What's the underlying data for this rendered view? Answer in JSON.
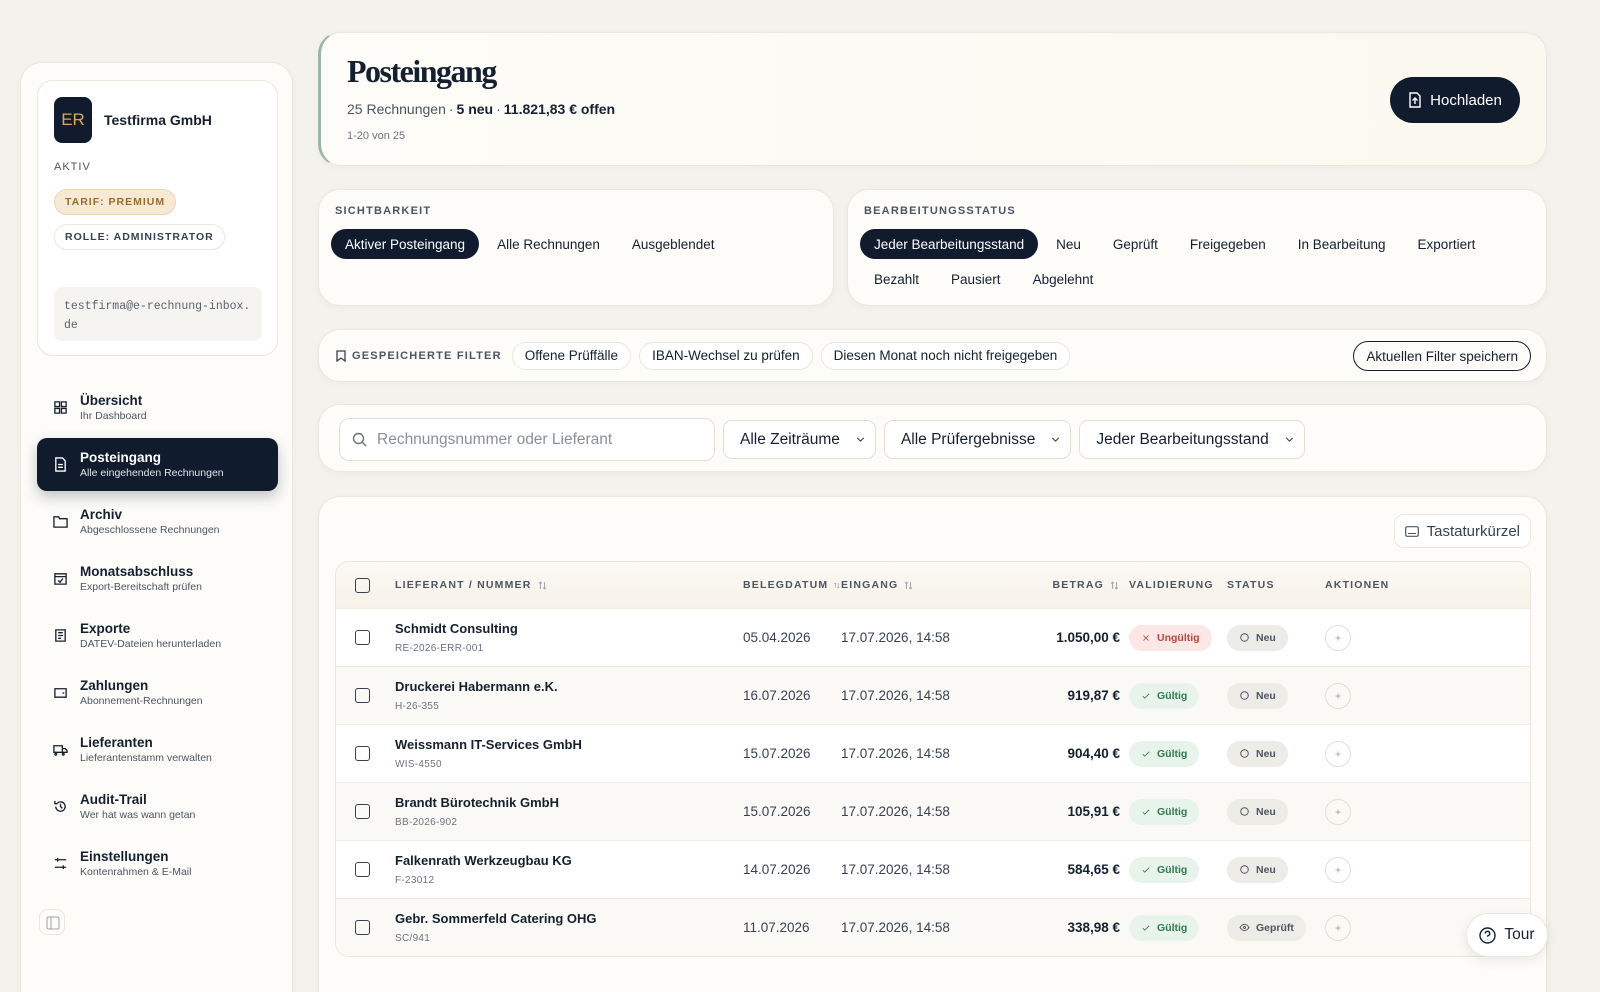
{
  "sidebar": {
    "initials": "ER",
    "company": "Testfirma GmbH",
    "state": "AKTIV",
    "badges": [
      "TARIF: PREMIUM",
      "ROLLE: ADMINISTRATOR"
    ],
    "email": "testfirma@e-rechnung-inbox.de",
    "active_nav": 1,
    "nav": [
      {
        "label": "Übersicht",
        "sub": "Ihr Dashboard"
      },
      {
        "label": "Posteingang",
        "sub": "Alle eingehenden Rechnungen"
      },
      {
        "label": "Archiv",
        "sub": "Abgeschlossene Rechnungen"
      },
      {
        "label": "Monatsabschluss",
        "sub": "Export-Bereitschaft prüfen"
      },
      {
        "label": "Exporte",
        "sub": "DATEV-Dateien herunterladen"
      },
      {
        "label": "Zahlungen",
        "sub": "Abonnement-Rechnungen"
      },
      {
        "label": "Lieferanten",
        "sub": "Lieferantenstamm verwalten"
      },
      {
        "label": "Audit-Trail",
        "sub": "Wer hat was wann getan"
      },
      {
        "label": "Einstellungen",
        "sub": "Kontenrahmen & E-Mail"
      }
    ]
  },
  "header": {
    "title": "Posteingang",
    "summary": [
      "25 Rechnungen",
      "·",
      "5 neu",
      "·",
      "11.821,83 € offen"
    ],
    "range": "1-20 von 25",
    "upload": "Hochladen"
  },
  "visibility": {
    "label": "SICHTBARKEIT",
    "selected": 0,
    "options": [
      "Aktiver Posteingang",
      "Alle Rechnungen",
      "Ausgeblendet"
    ]
  },
  "processing": {
    "label": "BEARBEITUNGSSTATUS",
    "selected": 0,
    "options": [
      "Jeder Bearbeitungsstand",
      "Neu",
      "Geprüft",
      "Freigegeben",
      "In Bearbeitung",
      "Exportiert",
      "Bezahlt",
      "Pausiert",
      "Abgelehnt"
    ]
  },
  "saved_filters": {
    "label": "GESPEICHERTE FILTER",
    "chips": [
      "Offene Prüffälle",
      "IBAN-Wechsel zu prüfen",
      "Diesen Monat noch nicht freigegeben"
    ],
    "save": "Aktuellen Filter speichern"
  },
  "search": {
    "placeholder": "Rechnungsnummer oder Lieferant",
    "selects": [
      "Alle Zeiträume",
      "Alle Prüfergebnisse",
      "Jeder Bearbeitungsstand"
    ]
  },
  "table": {
    "shortcuts": "Tastaturkürzel",
    "columns": [
      "LIEFERANT / NUMMER",
      "BELEGDATUM",
      "EINGANG",
      "BETRAG",
      "VALIDIERUNG",
      "STATUS",
      "AKTIONEN"
    ],
    "rows": [
      {
        "supplier": "Schmidt Consulting",
        "number": "RE-2026-ERR-001",
        "date": "05.04.2026",
        "received": "17.07.2026, 14:58",
        "amount": "1.050,00 €",
        "validation": "Ungültig",
        "validation_tone": "error",
        "status": "Neu"
      },
      {
        "supplier": "Druckerei Habermann e.K.",
        "number": "H-26-355",
        "date": "16.07.2026",
        "received": "17.07.2026, 14:58",
        "amount": "919,87 €",
        "validation": "Gültig",
        "validation_tone": "ok",
        "status": "Neu"
      },
      {
        "supplier": "Weissmann IT-Services GmbH",
        "number": "WIS-4550",
        "date": "15.07.2026",
        "received": "17.07.2026, 14:58",
        "amount": "904,40 €",
        "validation": "Gültig",
        "validation_tone": "ok",
        "status": "Neu"
      },
      {
        "supplier": "Brandt Bürotechnik GmbH",
        "number": "BB-2026-902",
        "date": "15.07.2026",
        "received": "17.07.2026, 14:58",
        "amount": "105,91 €",
        "validation": "Gültig",
        "validation_tone": "ok",
        "status": "Neu"
      },
      {
        "supplier": "Falkenrath Werkzeugbau KG",
        "number": "F-23012",
        "date": "14.07.2026",
        "received": "17.07.2026, 14:58",
        "amount": "584,65 €",
        "validation": "Gültig",
        "validation_tone": "ok",
        "status": "Neu"
      },
      {
        "supplier": "Gebr. Sommerfeld Catering OHG",
        "number": "SC/941",
        "date": "11.07.2026",
        "received": "17.07.2026, 14:58",
        "amount": "338,98 €",
        "validation": "Gültig",
        "validation_tone": "ok",
        "status": "Geprüft"
      }
    ]
  },
  "tour": "Tour"
}
